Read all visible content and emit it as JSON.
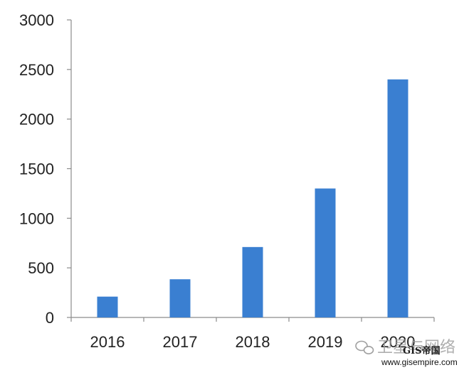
{
  "chart_data": {
    "type": "bar",
    "categories": [
      "2016",
      "2017",
      "2018",
      "2019",
      "2020"
    ],
    "values": [
      210,
      385,
      710,
      1300,
      2400
    ],
    "yticks": [
      "0",
      "500",
      "1000",
      "1500",
      "2000",
      "2500",
      "3000"
    ],
    "ylim": [
      0,
      3000
    ],
    "title": "",
    "xlabel": "",
    "ylabel": "",
    "grid": false,
    "legend": "none",
    "bar_color": "#3a7fd1"
  },
  "watermark": {
    "text": "卫星与网络",
    "brand": "GIS帝国",
    "url": "www.gisempire.com"
  }
}
